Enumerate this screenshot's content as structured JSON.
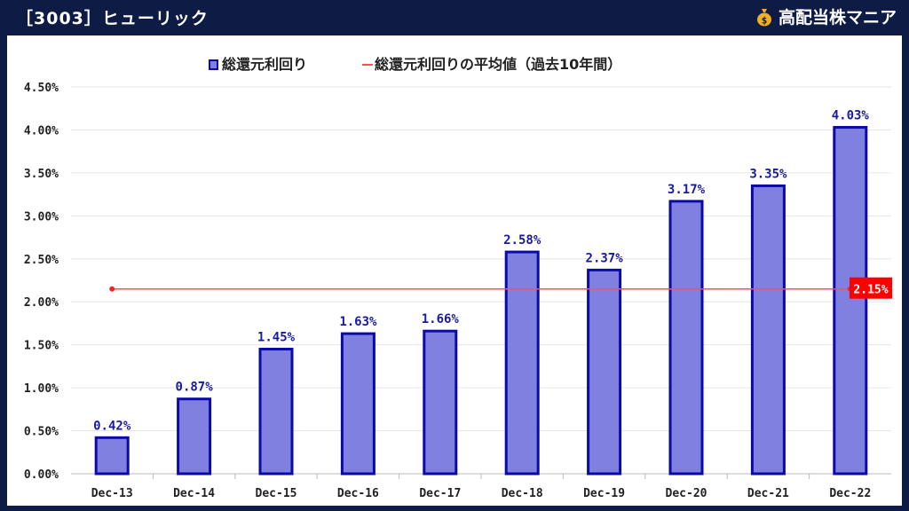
{
  "header": {
    "title": "［3003］ヒューリック",
    "brand_name": "高配当株マニア",
    "brand_icon": "money-bag-icon"
  },
  "colors": {
    "background": "#0d1b45",
    "bar_fill": "#8080e0",
    "bar_stroke": "#0a0aa8",
    "label": "#1a1aa0",
    "average_line": "#ff5050",
    "average_label_bg": "#ff0000"
  },
  "chart_data": {
    "type": "bar",
    "categories": [
      "Dec-13",
      "Dec-14",
      "Dec-15",
      "Dec-16",
      "Dec-17",
      "Dec-18",
      "Dec-19",
      "Dec-20",
      "Dec-21",
      "Dec-22"
    ],
    "series": [
      {
        "name": "総還元利回り",
        "values": [
          0.42,
          0.87,
          1.45,
          1.63,
          1.66,
          2.58,
          2.37,
          3.17,
          3.35,
          4.03
        ]
      }
    ],
    "data_labels": [
      "0.42%",
      "0.87%",
      "1.45%",
      "1.63%",
      "1.66%",
      "2.58%",
      "2.37%",
      "3.17%",
      "3.35%",
      "4.03%"
    ],
    "average": {
      "name": "総還元利回りの平均値（過去10年間）",
      "value": 2.15,
      "label": "2.15%"
    },
    "ylim": [
      0,
      4.5
    ],
    "yticks": [
      "0.00%",
      "0.50%",
      "1.00%",
      "1.50%",
      "2.00%",
      "2.50%",
      "3.00%",
      "3.50%",
      "4.00%",
      "4.50%"
    ],
    "xlabel": "",
    "ylabel": "",
    "legend_position": "top-center",
    "grid": true
  }
}
